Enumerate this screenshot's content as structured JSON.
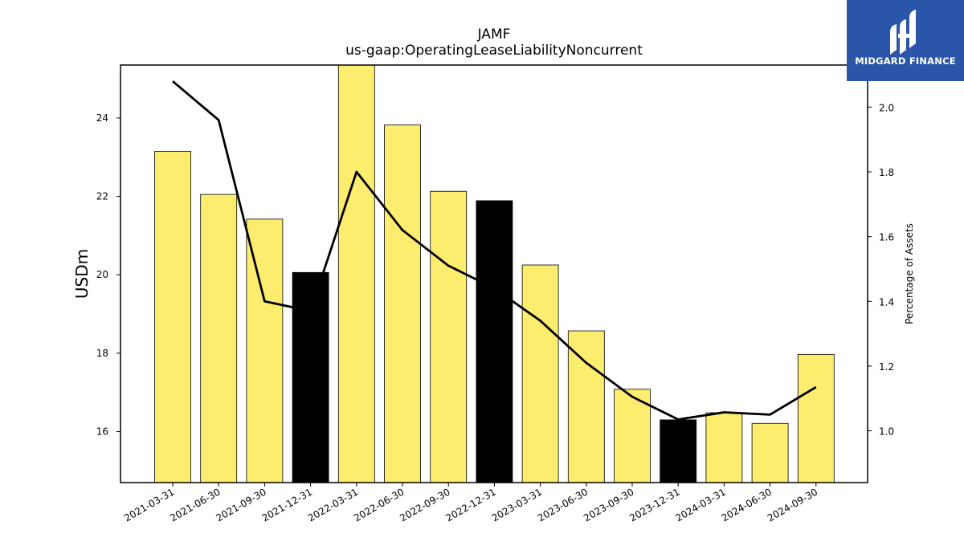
{
  "chart_data": {
    "type": "bar",
    "title": "JAMF",
    "subtitle": "us-gaap:OperatingLeaseLiabilityNoncurrent",
    "categories": [
      "2021-03-31",
      "2021-06-30",
      "2021-09-30",
      "2021-12-31",
      "2022-03-31",
      "2022-06-30",
      "2022-09-30",
      "2022-12-31",
      "2023-03-31",
      "2023-06-30",
      "2023-09-30",
      "2023-12-31",
      "2024-03-31",
      "2024-06-30",
      "2024-09-30"
    ],
    "series": [
      {
        "name": "",
        "axis": "left",
        "kind": "bar",
        "values": [
          23.15,
          22.05,
          21.42,
          20.06,
          25.35,
          23.82,
          22.13,
          21.89,
          20.25,
          18.57,
          17.08,
          16.3,
          16.48,
          16.21,
          17.97
        ]
      },
      {
        "name": "",
        "axis": "right",
        "kind": "line",
        "values": [
          2.08,
          1.96,
          1.4,
          1.37,
          1.8,
          1.62,
          1.51,
          1.44,
          1.34,
          1.21,
          1.105,
          1.035,
          1.057,
          1.05,
          1.135
        ]
      }
    ],
    "bar_colors": [
      "#fded6e",
      "#fded6e",
      "#fded6e",
      "#000000",
      "#fded6e",
      "#fded6e",
      "#fded6e",
      "#000000",
      "#fded6e",
      "#fded6e",
      "#fded6e",
      "#000000",
      "#fded6e",
      "#fded6e",
      "#fded6e"
    ],
    "line_color": "#000000",
    "ylabel": "USDm",
    "y2label": "Percentage of Assets",
    "ylim": [
      14.7,
      25.35
    ],
    "y2lim": [
      0.84,
      2.13
    ],
    "yticks": [
      "16",
      "18",
      "20",
      "22",
      "24"
    ],
    "y2ticks": [
      "1.0",
      "1.2",
      "1.4",
      "1.6",
      "1.8",
      "2.0"
    ],
    "grid": false,
    "legend": "none"
  },
  "logo": {
    "text": "MIDGARD FINANCE"
  }
}
